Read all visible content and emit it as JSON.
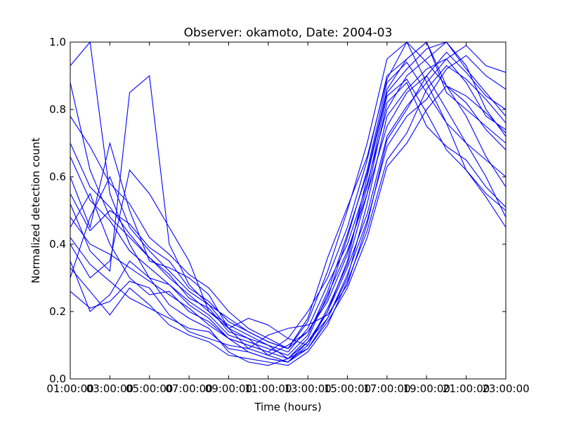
{
  "chart_data": {
    "type": "line",
    "title": "Observer: okamoto, Date: 2004-03",
    "xlabel": "Time (hours)",
    "ylabel": "Normalized detection count",
    "xlim": [
      1,
      23
    ],
    "ylim": [
      0,
      1
    ],
    "x_ticks": [
      {
        "value": 1,
        "label": "01:00:00"
      },
      {
        "value": 3,
        "label": "03:00:00"
      },
      {
        "value": 5,
        "label": "05:00:00"
      },
      {
        "value": 7,
        "label": "07:00:00"
      },
      {
        "value": 9,
        "label": "09:00:00"
      },
      {
        "value": 11,
        "label": "11:00:00"
      },
      {
        "value": 13,
        "label": "13:00:00"
      },
      {
        "value": 15,
        "label": "15:00:00"
      },
      {
        "value": 17,
        "label": "17:00:00"
      },
      {
        "value": 19,
        "label": "19:00:00"
      },
      {
        "value": 21,
        "label": "21:00:00"
      },
      {
        "value": 23,
        "label": "23:00:00"
      }
    ],
    "y_ticks": [
      {
        "value": 0.0,
        "label": "0.0"
      },
      {
        "value": 0.2,
        "label": "0.2"
      },
      {
        "value": 0.4,
        "label": "0.4"
      },
      {
        "value": 0.6,
        "label": "0.6"
      },
      {
        "value": 0.8,
        "label": "0.8"
      },
      {
        "value": 1.0,
        "label": "1.0"
      }
    ],
    "grid": false,
    "line_color": "#0000ff",
    "x": [
      1,
      2,
      3,
      4,
      5,
      6,
      7,
      8,
      9,
      10,
      11,
      12,
      13,
      14,
      15,
      16,
      17,
      18,
      19,
      20,
      21,
      22,
      23
    ],
    "series": [
      {
        "values": [
          0.93,
          1.0,
          0.55,
          0.4,
          0.3,
          0.28,
          0.22,
          0.18,
          0.12,
          0.1,
          0.08,
          0.12,
          0.2,
          0.3,
          0.45,
          0.65,
          0.9,
          0.95,
          1.0,
          0.85,
          0.8,
          0.75,
          0.7
        ]
      },
      {
        "values": [
          0.88,
          0.62,
          0.48,
          0.42,
          0.36,
          0.3,
          0.25,
          0.2,
          0.16,
          0.13,
          0.1,
          0.08,
          0.15,
          0.28,
          0.4,
          0.58,
          0.8,
          0.9,
          0.95,
          1.0,
          0.92,
          0.85,
          0.78
        ]
      },
      {
        "values": [
          0.6,
          0.45,
          0.7,
          0.5,
          0.35,
          0.33,
          0.3,
          0.25,
          0.15,
          0.12,
          0.1,
          0.06,
          0.12,
          0.25,
          0.38,
          0.55,
          0.75,
          0.85,
          0.9,
          0.8,
          0.7,
          0.65,
          0.6
        ]
      },
      {
        "values": [
          0.52,
          0.38,
          0.32,
          0.85,
          0.9,
          0.4,
          0.28,
          0.22,
          0.18,
          0.14,
          0.11,
          0.09,
          0.17,
          0.32,
          0.5,
          0.7,
          0.95,
          1.0,
          0.88,
          0.76,
          0.62,
          0.55,
          0.5
        ]
      },
      {
        "values": [
          0.45,
          0.55,
          0.4,
          0.3,
          0.25,
          0.26,
          0.2,
          0.17,
          0.12,
          0.08,
          0.06,
          0.05,
          0.1,
          0.2,
          0.35,
          0.6,
          0.85,
          0.92,
          0.98,
          1.0,
          0.93,
          0.8,
          0.72
        ]
      },
      {
        "values": [
          0.4,
          0.3,
          0.35,
          0.62,
          0.55,
          0.45,
          0.35,
          0.2,
          0.15,
          0.09,
          0.07,
          0.1,
          0.14,
          0.24,
          0.42,
          0.62,
          0.88,
          0.94,
          0.85,
          0.76,
          0.7,
          0.6,
          0.48
        ]
      },
      {
        "values": [
          0.35,
          0.2,
          0.25,
          0.35,
          0.3,
          0.22,
          0.18,
          0.15,
          0.08,
          0.05,
          0.04,
          0.06,
          0.11,
          0.18,
          0.3,
          0.52,
          0.78,
          0.86,
          0.92,
          0.95,
          0.88,
          0.78,
          0.74
        ]
      },
      {
        "values": [
          0.3,
          0.48,
          0.6,
          0.45,
          0.38,
          0.32,
          0.26,
          0.22,
          0.15,
          0.18,
          0.16,
          0.12,
          0.1,
          0.21,
          0.34,
          0.55,
          0.82,
          0.88,
          0.75,
          0.69,
          0.65,
          0.57,
          0.51
        ]
      },
      {
        "values": [
          0.26,
          0.21,
          0.23,
          0.29,
          0.27,
          0.19,
          0.14,
          0.12,
          0.1,
          0.09,
          0.13,
          0.15,
          0.16,
          0.19,
          0.28,
          0.46,
          0.71,
          0.8,
          0.9,
          0.97,
          0.91,
          0.84,
          0.8
        ]
      },
      {
        "values": [
          0.66,
          0.53,
          0.47,
          0.38,
          0.33,
          0.28,
          0.23,
          0.19,
          0.13,
          0.11,
          0.09,
          0.07,
          0.13,
          0.26,
          0.43,
          0.61,
          0.86,
          0.95,
          1.0,
          0.87,
          0.82,
          0.74,
          0.68
        ]
      },
      {
        "values": [
          0.78,
          0.69,
          0.58,
          0.52,
          0.42,
          0.37,
          0.31,
          0.27,
          0.2,
          0.15,
          0.12,
          0.09,
          0.18,
          0.36,
          0.51,
          0.66,
          0.89,
          1.0,
          0.94,
          0.87,
          0.78,
          0.66,
          0.57
        ]
      },
      {
        "values": [
          0.48,
          0.4,
          0.37,
          0.33,
          0.29,
          0.25,
          0.21,
          0.16,
          0.12,
          0.1,
          0.08,
          0.06,
          0.09,
          0.18,
          0.31,
          0.47,
          0.69,
          0.78,
          0.83,
          0.92,
          0.96,
          0.9,
          0.86
        ]
      },
      {
        "values": [
          0.55,
          0.44,
          0.5,
          0.46,
          0.39,
          0.35,
          0.27,
          0.23,
          0.17,
          0.14,
          0.11,
          0.09,
          0.14,
          0.23,
          0.37,
          0.57,
          0.84,
          0.89,
          0.79,
          0.68,
          0.62,
          0.54,
          0.45
        ]
      },
      {
        "values": [
          0.7,
          0.57,
          0.51,
          0.43,
          0.36,
          0.31,
          0.24,
          0.21,
          0.14,
          0.12,
          0.07,
          0.05,
          0.11,
          0.2,
          0.33,
          0.49,
          0.72,
          0.81,
          0.88,
          0.95,
          0.99,
          0.93,
          0.91
        ]
      },
      {
        "values": [
          0.33,
          0.26,
          0.19,
          0.27,
          0.22,
          0.16,
          0.13,
          0.11,
          0.07,
          0.06,
          0.05,
          0.04,
          0.08,
          0.16,
          0.29,
          0.44,
          0.65,
          0.73,
          0.86,
          0.93,
          0.89,
          0.83,
          0.76
        ]
      },
      {
        "values": [
          0.42,
          0.34,
          0.29,
          0.24,
          0.21,
          0.18,
          0.15,
          0.14,
          0.09,
          0.08,
          0.06,
          0.05,
          0.09,
          0.17,
          0.27,
          0.42,
          0.63,
          0.7,
          0.8,
          0.87,
          0.84,
          0.79,
          0.73
        ]
      }
    ]
  }
}
